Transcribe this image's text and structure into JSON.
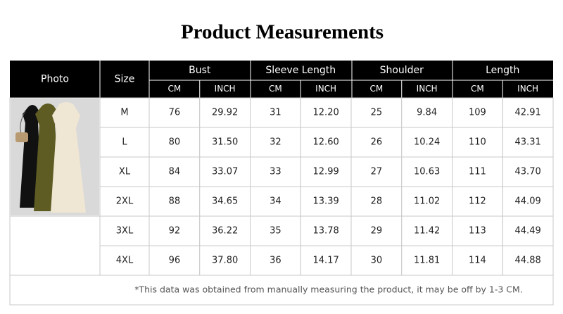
{
  "title": "Product Measurements",
  "table": {
    "header": [
      "Photo",
      "Size"
    ],
    "groups": [
      "Bust",
      "Sleeve Length",
      "Shoulder",
      "Length"
    ],
    "units": [
      "CM",
      "INCH",
      "CM",
      "INCH",
      "CM",
      "INCH",
      "CM",
      "INCH"
    ],
    "rows": [
      [
        "M",
        "76",
        "29.92",
        "31",
        "12.20",
        "25",
        "9.84",
        "109",
        "42.91"
      ],
      [
        "L",
        "80",
        "31.50",
        "32",
        "12.60",
        "26",
        "10.24",
        "110",
        "43.31"
      ],
      [
        "XL",
        "84",
        "33.07",
        "33",
        "12.99",
        "27",
        "10.63",
        "111",
        "43.70"
      ],
      [
        "2XL",
        "88",
        "34.65",
        "34",
        "13.39",
        "28",
        "11.02",
        "112",
        "44.09"
      ],
      [
        "3XL",
        "92",
        "36.22",
        "35",
        "13.78",
        "29",
        "11.42",
        "113",
        "44.49"
      ],
      [
        "4XL",
        "96",
        "37.80",
        "36",
        "14.17",
        "30",
        "11.81",
        "114",
        "44.88"
      ]
    ],
    "note": "*This data was obtained from manually measuring the product, it may be off by 1-3 CM."
  }
}
